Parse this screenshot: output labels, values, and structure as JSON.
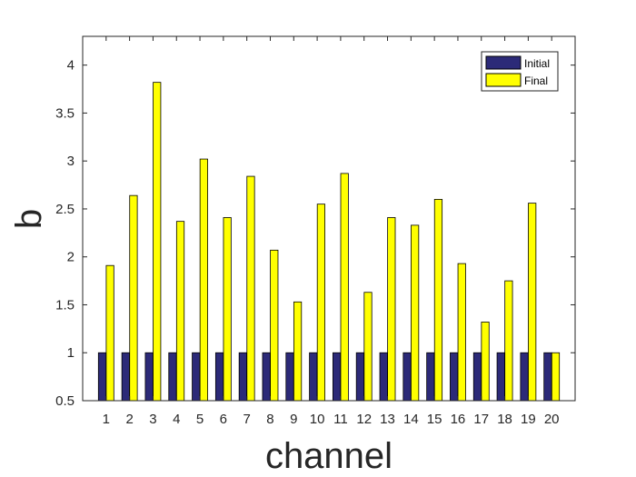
{
  "chart_data": {
    "type": "bar",
    "title": "",
    "xlabel": "channel",
    "ylabel": "b",
    "ylim": [
      0.5,
      4.3
    ],
    "yticks": [
      0.5,
      1,
      1.5,
      2,
      2.5,
      3,
      3.5,
      4
    ],
    "ytick_labels": [
      "0.5",
      "1",
      "1.5",
      "2",
      "2.5",
      "3",
      "3.5",
      "4"
    ],
    "categories": [
      "1",
      "2",
      "3",
      "4",
      "5",
      "6",
      "7",
      "8",
      "9",
      "10",
      "11",
      "12",
      "13",
      "14",
      "15",
      "16",
      "17",
      "18",
      "19",
      "20"
    ],
    "series": [
      {
        "name": "Initial",
        "color": "#2c2a78",
        "values": [
          1,
          1,
          1,
          1,
          1,
          1,
          1,
          1,
          1,
          1,
          1,
          1,
          1,
          1,
          1,
          1,
          1,
          1,
          1,
          1
        ]
      },
      {
        "name": "Final",
        "color": "#ffff00",
        "values": [
          1.91,
          2.64,
          3.82,
          2.37,
          3.02,
          2.41,
          2.84,
          2.07,
          1.53,
          2.55,
          2.87,
          1.63,
          2.41,
          2.33,
          2.6,
          1.93,
          1.32,
          1.75,
          2.56,
          1.0
        ]
      }
    ],
    "grid": false,
    "legend_position": "top-right",
    "baseline": 0.5
  }
}
